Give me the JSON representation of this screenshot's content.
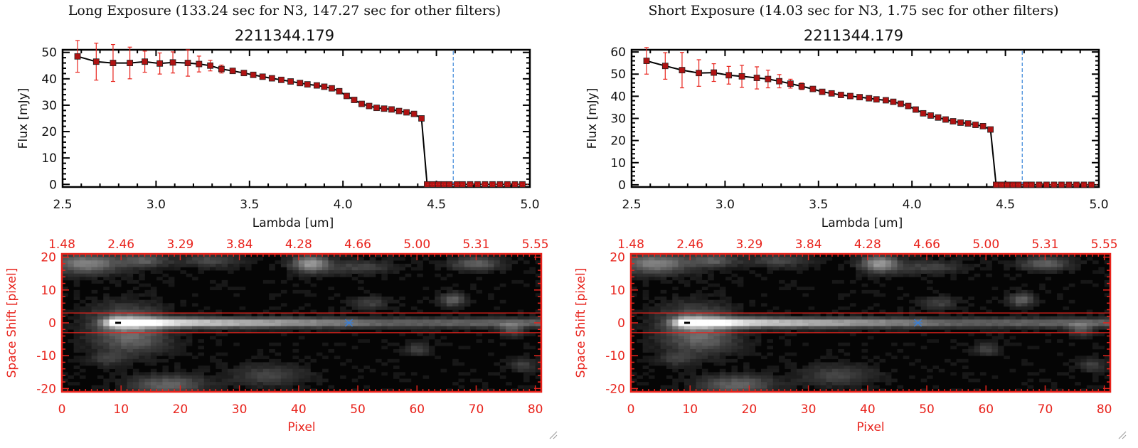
{
  "colors": {
    "errorbar": "#e8231c",
    "marker": "#b01212",
    "line": "#000000",
    "frame": "#000000",
    "spatial_frame": "#e8231c",
    "limit_line": "#3a86d9",
    "star_marker": "#3a7fd6"
  },
  "chart_data": [
    {
      "type": "line",
      "panel_title": "Long Exposure (133.24 sec for N3, 147.27 sec for other filters)",
      "title": "2211344.179",
      "xlabel": "Lambda [um]",
      "ylabel": "Flux [mJy]",
      "xlim": [
        2.5,
        5.0
      ],
      "ylim": [
        -1,
        51
      ],
      "xticks": [
        "2.5",
        "3.0",
        "3.5",
        "4.0",
        "4.5",
        "5.0"
      ],
      "yticks": [
        "0",
        "10",
        "20",
        "30",
        "40",
        "50"
      ],
      "ytick_values": [
        0,
        10,
        20,
        30,
        40,
        50
      ],
      "limit_line_x": 4.59,
      "series": [
        {
          "x": [
            2.58,
            2.68,
            2.77,
            2.86,
            2.94,
            3.02,
            3.09,
            3.17,
            3.23,
            3.29,
            3.35,
            3.41,
            3.47,
            3.52,
            3.57,
            3.62,
            3.67,
            3.72,
            3.77,
            3.81,
            3.86,
            3.9,
            3.94,
            3.98,
            4.02,
            4.06,
            4.1,
            4.14,
            4.18,
            4.22,
            4.26,
            4.3,
            4.34,
            4.38,
            4.42,
            4.45,
            4.48,
            4.51,
            4.54,
            4.57,
            4.61,
            4.64,
            4.68,
            4.72,
            4.76,
            4.8,
            4.84,
            4.88,
            4.92,
            4.96
          ],
          "y": [
            48.5,
            46.5,
            46.0,
            46.0,
            46.5,
            45.8,
            46.2,
            46.0,
            45.6,
            45.0,
            43.7,
            43.0,
            42.2,
            41.5,
            40.8,
            40.2,
            39.6,
            39.0,
            38.4,
            37.9,
            37.5,
            37.0,
            36.4,
            35.3,
            33.5,
            32.0,
            30.5,
            29.7,
            29.0,
            28.7,
            28.4,
            27.8,
            27.3,
            26.7,
            25.0,
            0,
            0,
            0,
            0,
            0,
            0,
            0,
            0,
            0,
            0,
            0,
            0,
            0,
            0,
            0
          ],
          "yerr": [
            6,
            7,
            7,
            6,
            4,
            4,
            4,
            5,
            3,
            2,
            1.5,
            1,
            0.5,
            0.5,
            0.5,
            0.5,
            0.5,
            0.5,
            0.5,
            0.5,
            0.5,
            0.5,
            0.5,
            0.5,
            0.5,
            0.5,
            0.5,
            0.5,
            0.5,
            0.5,
            0.5,
            0.5,
            0.5,
            0.5,
            0.5,
            0,
            0,
            0,
            0,
            0,
            0,
            0,
            0,
            0,
            0,
            0,
            0,
            0,
            0,
            0
          ]
        }
      ],
      "image": {
        "top_axis_ticks": [
          "1.48",
          "2.46",
          "3.29",
          "3.84",
          "4.28",
          "4.66",
          "5.00",
          "5.31",
          "5.55"
        ],
        "xlabel": "Pixel",
        "ylabel": "Space Shift [pixel]",
        "xticks": [
          "0",
          "10",
          "20",
          "30",
          "40",
          "50",
          "60",
          "70",
          "80"
        ],
        "yticks": [
          "20",
          "10",
          "0",
          "-10",
          "-20"
        ],
        "xlim": [
          0,
          81
        ],
        "ylim": [
          -21,
          21
        ],
        "aperture_rows": [
          -3,
          3
        ],
        "source_pixel": [
          9.5,
          0
        ],
        "star_marker_pixel": [
          48.5,
          0
        ]
      }
    },
    {
      "type": "line",
      "panel_title": "Short Exposure (14.03 sec for N3, 1.75 sec for other filters)",
      "title": "2211344.179",
      "xlabel": "Lambda [um]",
      "ylabel": "Flux [mJy]",
      "xlim": [
        2.5,
        5.0
      ],
      "ylim": [
        -1,
        61
      ],
      "xticks": [
        "2.5",
        "3.0",
        "3.5",
        "4.0",
        "4.5",
        "5.0"
      ],
      "yticks": [
        "0",
        "10",
        "20",
        "30",
        "40",
        "50",
        "60"
      ],
      "ytick_values": [
        0,
        10,
        20,
        30,
        40,
        50,
        60
      ],
      "limit_line_x": 4.59,
      "series": [
        {
          "x": [
            2.58,
            2.68,
            2.77,
            2.86,
            2.94,
            3.02,
            3.09,
            3.17,
            3.23,
            3.29,
            3.35,
            3.41,
            3.47,
            3.52,
            3.57,
            3.62,
            3.67,
            3.72,
            3.77,
            3.81,
            3.86,
            3.9,
            3.94,
            3.98,
            4.02,
            4.06,
            4.1,
            4.14,
            4.18,
            4.22,
            4.26,
            4.3,
            4.34,
            4.38,
            4.42,
            4.45,
            4.48,
            4.51,
            4.54,
            4.57,
            4.61,
            4.64,
            4.68,
            4.72,
            4.76,
            4.8,
            4.84,
            4.88,
            4.92,
            4.96
          ],
          "y": [
            56.0,
            53.7,
            51.8,
            50.5,
            50.7,
            49.5,
            49.0,
            48.3,
            47.8,
            46.8,
            45.7,
            44.5,
            43.3,
            42.0,
            41.3,
            40.6,
            40.1,
            39.6,
            39.1,
            38.6,
            38.2,
            37.5,
            36.6,
            35.6,
            34.0,
            32.3,
            31.3,
            30.4,
            29.5,
            28.7,
            28.1,
            27.7,
            27.1,
            26.5,
            25.0,
            0,
            0,
            0,
            0,
            0,
            0,
            0,
            0,
            0,
            0,
            0,
            0,
            0,
            0,
            0
          ],
          "yerr": [
            6,
            6,
            8,
            6,
            4,
            4,
            5,
            5,
            4,
            3,
            2,
            1.5,
            1,
            0.5,
            0.5,
            0.5,
            0.5,
            0.5,
            0.5,
            0.5,
            0.5,
            0.5,
            0.5,
            0.5,
            0.5,
            0.5,
            0.5,
            0.5,
            0.5,
            0.5,
            0.5,
            0.5,
            0.5,
            0.5,
            0.5,
            0,
            0,
            0,
            0,
            0,
            0,
            0,
            0,
            0,
            0,
            0,
            0,
            0,
            0,
            0
          ]
        }
      ],
      "image": {
        "top_axis_ticks": [
          "1.48",
          "2.46",
          "3.29",
          "3.84",
          "4.28",
          "4.66",
          "5.00",
          "5.31",
          "5.55"
        ],
        "xlabel": "Pixel",
        "ylabel": "Space Shift [pixel]",
        "xticks": [
          "0",
          "10",
          "20",
          "30",
          "40",
          "50",
          "60",
          "70",
          "80"
        ],
        "yticks": [
          "20",
          "10",
          "0",
          "-10",
          "-20"
        ],
        "xlim": [
          0,
          81
        ],
        "ylim": [
          -21,
          21
        ],
        "aperture_rows": [
          -3,
          3
        ],
        "source_pixel": [
          9.5,
          0
        ],
        "star_marker_pixel": [
          48.5,
          0
        ]
      }
    }
  ]
}
